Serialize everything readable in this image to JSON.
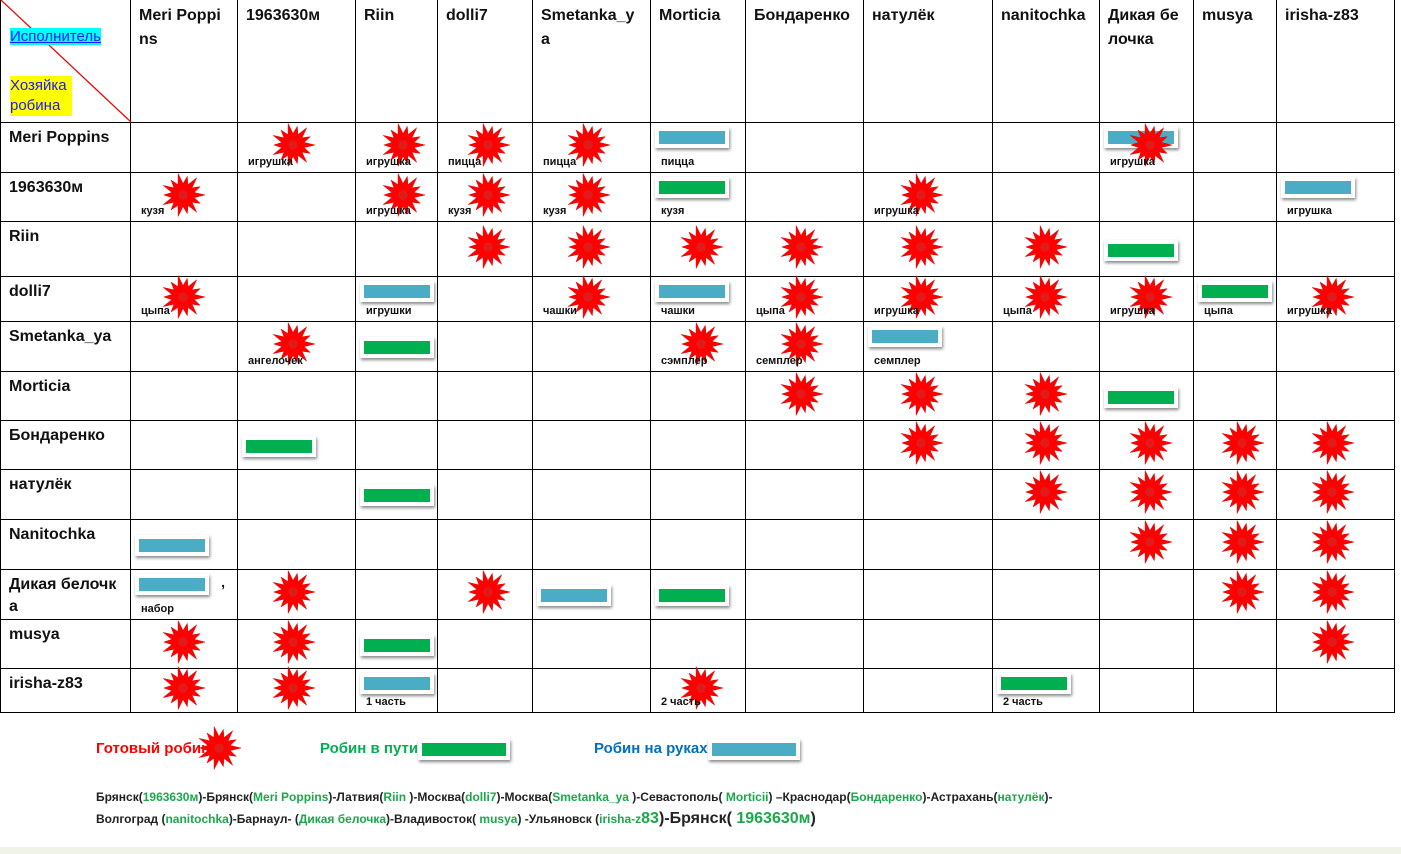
{
  "corner": {
    "performer": "Исполнитель",
    "owner": "Хозяйка робина"
  },
  "columns": [
    "Meri Poppins",
    "1963630м",
    "Riin",
    "dolli7",
    "Smetanka_ya",
    "Morticia",
    "Бондаренко",
    "натулёк",
    "nanitochka",
    "Дикая белочка",
    "musya",
    "irisha-z83"
  ],
  "rows": [
    {
      "name": "Meri Poppins",
      "cells": [
        null,
        {
          "marks": [
            "star"
          ],
          "label": "игрушка"
        },
        {
          "marks": [
            "star"
          ],
          "label": "игрушка"
        },
        {
          "marks": [
            "star"
          ],
          "label": "пицца"
        },
        {
          "marks": [
            "star"
          ],
          "label": "пицца"
        },
        {
          "marks": [
            "blue"
          ],
          "label": "пицца"
        },
        null,
        null,
        null,
        {
          "marks": [
            "blue",
            "star"
          ],
          "label": "игрушка"
        },
        null,
        null
      ]
    },
    {
      "name": "1963630м",
      "cells": [
        {
          "marks": [
            "star"
          ],
          "label": "кузя"
        },
        null,
        {
          "marks": [
            "star"
          ],
          "label": "игрушка"
        },
        {
          "marks": [
            "star"
          ],
          "label": "кузя"
        },
        {
          "marks": [
            "star"
          ],
          "label": "кузя"
        },
        {
          "marks": [
            "green"
          ],
          "label": "кузя"
        },
        null,
        {
          "marks": [
            "star"
          ],
          "label": "игрушка"
        },
        null,
        null,
        null,
        {
          "marks": [
            "blue"
          ],
          "label": "игрушка"
        }
      ]
    },
    {
      "name": "Riin",
      "cells": [
        null,
        null,
        null,
        {
          "marks": [
            "star"
          ]
        },
        {
          "marks": [
            "star"
          ]
        },
        {
          "marks": [
            "star"
          ]
        },
        {
          "marks": [
            "star"
          ]
        },
        {
          "marks": [
            "star"
          ]
        },
        {
          "marks": [
            "star"
          ]
        },
        {
          "marks": [
            "green"
          ]
        },
        null,
        null
      ]
    },
    {
      "name": "dolli7",
      "cells": [
        {
          "marks": [
            "star"
          ],
          "label": "цыпа"
        },
        null,
        {
          "marks": [
            "blue"
          ],
          "label": "игрушки"
        },
        null,
        {
          "marks": [
            "star"
          ],
          "label": "чашки"
        },
        {
          "marks": [
            "blue"
          ],
          "label": "чашки"
        },
        {
          "marks": [
            "star"
          ],
          "label": "цыпа"
        },
        {
          "marks": [
            "star"
          ],
          "label": "игрушка"
        },
        {
          "marks": [
            "star"
          ],
          "label": "цыпа"
        },
        {
          "marks": [
            "star"
          ],
          "label": "игрушка"
        },
        {
          "marks": [
            "green"
          ],
          "label": "цыпа"
        },
        {
          "marks": [
            "star"
          ],
          "label": "игрушка"
        }
      ]
    },
    {
      "name": "Smetanka_ya",
      "cells": [
        null,
        {
          "marks": [
            "star"
          ],
          "label": "ангелочек"
        },
        {
          "marks": [
            "green"
          ]
        },
        null,
        null,
        {
          "marks": [
            "star"
          ],
          "label": "сэмплер"
        },
        {
          "marks": [
            "star"
          ],
          "label": "семплер"
        },
        {
          "marks": [
            "blue"
          ],
          "label": "семплер"
        },
        null,
        null,
        null,
        null
      ]
    },
    {
      "name": "Morticia",
      "cells": [
        null,
        null,
        null,
        null,
        null,
        null,
        {
          "marks": [
            "star"
          ]
        },
        {
          "marks": [
            "star"
          ]
        },
        {
          "marks": [
            "star"
          ]
        },
        {
          "marks": [
            "green"
          ]
        },
        null,
        null
      ]
    },
    {
      "name": "Бондаренко",
      "cells": [
        null,
        {
          "marks": [
            "green"
          ]
        },
        null,
        null,
        null,
        null,
        null,
        {
          "marks": [
            "star"
          ]
        },
        {
          "marks": [
            "star"
          ]
        },
        {
          "marks": [
            "star"
          ]
        },
        {
          "marks": [
            "star"
          ]
        },
        {
          "marks": [
            "star"
          ]
        }
      ]
    },
    {
      "name": "натулёк",
      "cells": [
        null,
        null,
        {
          "marks": [
            "green"
          ]
        },
        null,
        null,
        null,
        null,
        null,
        {
          "marks": [
            "star"
          ]
        },
        {
          "marks": [
            "star"
          ]
        },
        {
          "marks": [
            "star"
          ]
        },
        {
          "marks": [
            "star"
          ]
        }
      ]
    },
    {
      "name": "Nanitochka",
      "cells": [
        {
          "marks": [
            "blue"
          ]
        },
        null,
        null,
        null,
        null,
        null,
        null,
        null,
        null,
        {
          "marks": [
            "star"
          ]
        },
        {
          "marks": [
            "star"
          ]
        },
        {
          "marks": [
            "star"
          ]
        }
      ]
    },
    {
      "name": "Дикая белочка",
      "cells": [
        {
          "marks": [
            "blue"
          ],
          "label": "набор",
          "note": ","
        },
        {
          "marks": [
            "star"
          ]
        },
        null,
        {
          "marks": [
            "star"
          ]
        },
        {
          "marks": [
            "blue"
          ]
        },
        {
          "marks": [
            "green"
          ]
        },
        null,
        null,
        null,
        null,
        {
          "marks": [
            "star"
          ]
        },
        {
          "marks": [
            "star"
          ]
        }
      ]
    },
    {
      "name": "musya",
      "cells": [
        {
          "marks": [
            "star"
          ]
        },
        {
          "marks": [
            "star"
          ]
        },
        {
          "marks": [
            "green"
          ]
        },
        null,
        null,
        null,
        null,
        null,
        null,
        null,
        null,
        {
          "marks": [
            "star"
          ]
        }
      ]
    },
    {
      "name": "irisha-z83",
      "cells": [
        {
          "marks": [
            "star"
          ]
        },
        {
          "marks": [
            "star"
          ]
        },
        {
          "marks": [
            "blue"
          ],
          "label": "1 часть"
        },
        null,
        null,
        {
          "marks": [
            "star"
          ],
          "label": "2 часть"
        },
        null,
        null,
        {
          "marks": [
            "green"
          ],
          "label": "2 часть"
        },
        null,
        null,
        null
      ]
    }
  ],
  "legend": [
    {
      "label": "Готовый робин",
      "mark": "star",
      "color": "#ff0000"
    },
    {
      "label": "Робин в пути",
      "mark": "green",
      "color": "#00b050"
    },
    {
      "label": "Робин на руках",
      "mark": "blue",
      "color": "#0070c0"
    }
  ],
  "route": [
    [
      {
        "text": "Брянск(",
        "style": "k"
      },
      {
        "text": "1963630м",
        "style": "g"
      },
      {
        "text": ")-Брянск(",
        "style": "k"
      },
      {
        "text": "Meri Poppins",
        "style": "g"
      },
      {
        "text": ")-Латвия(",
        "style": "k"
      },
      {
        "text": "Riin ",
        "style": "g"
      },
      {
        "text": ")-Москва(",
        "style": "k"
      },
      {
        "text": "dolli7",
        "style": "g"
      },
      {
        "text": ")-Москва(",
        "style": "k"
      },
      {
        "text": "Smetanka_ya ",
        "style": "g"
      },
      {
        "text": ")-Севастополь( ",
        "style": "k"
      },
      {
        "text": "Morticii",
        "style": "g"
      },
      {
        "text": ") –Краснодар(",
        "style": "k"
      },
      {
        "text": "Бондаренко",
        "style": "g"
      },
      {
        "text": ")-Астрахань(",
        "style": "k"
      },
      {
        "text": "натулёк",
        "style": "g"
      },
      {
        "text": ")-",
        "style": "k"
      }
    ],
    [
      {
        "text": "Волгоград (",
        "style": "k"
      },
      {
        "text": "nanitochka",
        "style": "g"
      },
      {
        "text": ")-Барнаул- (",
        "style": "k"
      },
      {
        "text": "Дикая белочка",
        "style": "g"
      },
      {
        "text": ")-Владивосток( ",
        "style": "k"
      },
      {
        "text": "musya",
        "style": "g"
      },
      {
        "text": ") -Ульяновск (",
        "style": "k"
      },
      {
        "text": "irisha-z",
        "style": "g"
      },
      {
        "text": "83",
        "style": "G"
      },
      {
        "text": ")-Брянск( ",
        "style": "K"
      },
      {
        "text": "1963630м",
        "style": "G"
      },
      {
        "text": ")",
        "style": "K"
      }
    ]
  ]
}
